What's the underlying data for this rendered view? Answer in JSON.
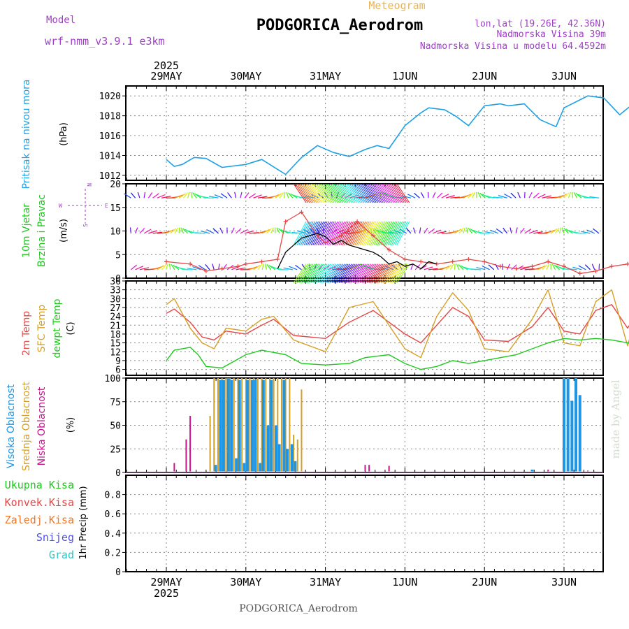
{
  "header": {
    "model_label": "Model",
    "model_name": "wrf-nmm_v3.9.1 e3km",
    "meteogram_label": "Meteogram",
    "station_title": "PODGORICA_Aerodrom",
    "coords": "lon,lat (19.26E, 42.36N)",
    "elevation": "Nadmorska Visina 39m",
    "model_elevation": "Nadmorska Visina u modelu 64.4592m"
  },
  "footer": {
    "station": "PODGORICA_Aerodrom"
  },
  "watermark": "made by Angel",
  "colors": {
    "pressure": "#1ea0e6",
    "temp2m": "#e64646",
    "sfc": "#d6a028",
    "dewpt": "#1ec81e",
    "gust": "#000000",
    "low_cloud": "#c8148c",
    "mid_cloud": "#d6a028",
    "high_cloud": "#1e96e6",
    "purple_label": "#a040c8",
    "grid": "#888888"
  },
  "chart_data": [
    {
      "type": "line",
      "name": "pressure",
      "ylabel": "Pritisak na nivou mora",
      "unit": "(hPa)",
      "ylim": [
        1011.5,
        1021
      ],
      "yticks": [
        1012,
        1014,
        1016,
        1018,
        1020
      ],
      "x_days": [
        0,
        0.1,
        0.2,
        0.35,
        0.5,
        0.7,
        1.0,
        1.2,
        1.4,
        1.5,
        1.7,
        1.9,
        2.1,
        2.3,
        2.5,
        2.65,
        2.8,
        3.0,
        3.2,
        3.3,
        3.5,
        3.65,
        3.8,
        4.0,
        4.2,
        4.3,
        4.5,
        4.7,
        4.9,
        5.0,
        5.2,
        5.3,
        5.5,
        5.7,
        5.9,
        6.0
      ],
      "values": [
        1013.6,
        1012.9,
        1013.1,
        1013.8,
        1013.7,
        1012.8,
        1013.1,
        1013.6,
        1012.6,
        1012.1,
        1013.8,
        1015.0,
        1014.3,
        1013.9,
        1014.6,
        1015.0,
        1014.7,
        1017.0,
        1018.3,
        1018.8,
        1018.6,
        1017.9,
        1017.0,
        1019.0,
        1019.2,
        1019.0,
        1019.2,
        1017.6,
        1016.9,
        1018.8,
        1019.6,
        1020.0,
        1019.8,
        1018.1,
        1019.4,
        1019.8
      ]
    },
    {
      "type": "line",
      "name": "wind",
      "ylabel": "10m Vjetar",
      "ylabel2": "Brzina i Pravac",
      "unit": "(m/s)",
      "ylim": [
        0,
        20
      ],
      "yticks": [
        0,
        5,
        10,
        15,
        20
      ],
      "compass": {
        "w": "W",
        "e": "E",
        "n": "N",
        "s": "S"
      },
      "barb_rows": [
        17,
        9.5,
        1.8
      ],
      "series": [
        {
          "name": "10m wind speed",
          "x_days": [
            0,
            0.3,
            0.5,
            0.7,
            0.9,
            1.0,
            1.2,
            1.4,
            1.5,
            1.7,
            1.9,
            2.0,
            2.2,
            2.4,
            2.6,
            2.8,
            3.0,
            3.2,
            3.4,
            3.6,
            3.8,
            4.0,
            4.2,
            4.4,
            4.6,
            4.8,
            5.0,
            5.2,
            5.4,
            5.6,
            5.8,
            6.0
          ],
          "values": [
            3.5,
            3.0,
            1.5,
            2.0,
            2.5,
            3.0,
            3.5,
            4.0,
            12.0,
            14.0,
            9.0,
            7.5,
            9.0,
            12.0,
            9.0,
            6.0,
            4.0,
            3.5,
            3.0,
            3.5,
            4.0,
            3.5,
            2.5,
            2.0,
            2.5,
            3.5,
            2.5,
            1.0,
            1.5,
            2.5,
            3.0,
            3.0
          ]
        },
        {
          "name": "gust",
          "x_days": [
            1.4,
            1.5,
            1.6,
            1.7,
            1.8,
            1.9,
            2.0,
            2.1,
            2.2,
            2.3,
            2.4,
            2.5,
            2.6,
            2.7,
            2.8,
            2.9,
            3.0,
            3.1,
            3.2,
            3.3,
            3.4
          ],
          "values": [
            2.0,
            5.5,
            7.0,
            8.5,
            9.0,
            9.5,
            8.8,
            7.2,
            8.0,
            7.0,
            6.5,
            6.0,
            5.5,
            4.5,
            3.0,
            3.5,
            2.5,
            3.0,
            2.0,
            3.5,
            3.0
          ]
        }
      ]
    },
    {
      "type": "line",
      "name": "temperature",
      "ylabels": [
        "2m Temp",
        "SFC Temp",
        "dewpt Temp"
      ],
      "unit": "(C)",
      "ylim": [
        4,
        36
      ],
      "yticks": [
        6,
        9,
        12,
        15,
        18,
        21,
        24,
        27,
        30,
        33,
        36
      ],
      "series": [
        {
          "name": "2m Temp",
          "x_days": [
            0,
            0.1,
            0.3,
            0.45,
            0.6,
            0.75,
            1.0,
            1.2,
            1.35,
            1.6,
            2.0,
            2.3,
            2.6,
            2.8,
            3.0,
            3.2,
            3.4,
            3.6,
            3.8,
            4.0,
            4.3,
            4.6,
            4.8,
            5.0,
            5.2,
            5.4,
            5.6,
            5.8,
            6.0
          ],
          "values": [
            25,
            26.5,
            22,
            17,
            16,
            19,
            18,
            21,
            23,
            17.5,
            16.5,
            22,
            26,
            22,
            18,
            15,
            21,
            27,
            24,
            16,
            15.5,
            20.5,
            27,
            19,
            18,
            26,
            28,
            20,
            28.5
          ]
        },
        {
          "name": "SFC Temp",
          "x_days": [
            0,
            0.1,
            0.3,
            0.45,
            0.6,
            0.75,
            1.0,
            1.2,
            1.35,
            1.6,
            2.0,
            2.3,
            2.6,
            2.8,
            3.0,
            3.2,
            3.4,
            3.6,
            3.8,
            4.0,
            4.3,
            4.6,
            4.8,
            5.0,
            5.2,
            5.4,
            5.6,
            5.8,
            6.0
          ],
          "values": [
            28,
            30,
            20,
            15,
            13,
            20,
            19,
            23,
            24,
            16,
            12,
            27,
            29,
            21,
            13,
            10,
            24,
            32,
            26,
            13,
            12,
            23,
            33,
            15,
            14,
            29,
            33,
            14,
            34
          ]
        },
        {
          "name": "dewpt Temp",
          "x_days": [
            0,
            0.1,
            0.3,
            0.4,
            0.5,
            0.7,
            1.0,
            1.2,
            1.5,
            1.7,
            2.0,
            2.3,
            2.5,
            2.8,
            3.0,
            3.2,
            3.4,
            3.6,
            3.8,
            4.0,
            4.2,
            4.4,
            4.6,
            4.8,
            5.0,
            5.2,
            5.4,
            5.6,
            5.8,
            6.0
          ],
          "values": [
            9,
            12.5,
            13.5,
            11,
            7,
            6.5,
            11,
            12.5,
            11,
            8,
            7.5,
            8,
            10,
            11,
            8,
            6,
            7,
            9,
            8,
            9,
            10,
            11,
            13,
            15,
            16.5,
            16,
            16.5,
            16,
            15,
            14
          ]
        }
      ]
    },
    {
      "type": "bar",
      "name": "cloudiness",
      "ylabels": [
        "Visoka Oblacnost",
        "Srednja Oblacnost",
        "Niska Oblacnost"
      ],
      "unit": "(%)",
      "ylim": [
        0,
        100
      ],
      "yticks": [
        0,
        25,
        50,
        75,
        100
      ],
      "series": [
        {
          "name": "Niska Oblacnost",
          "x_days": [
            0.1,
            0.25,
            0.3,
            1.6,
            2.0,
            2.5,
            2.55,
            2.8,
            4.8,
            5.3
          ],
          "values": [
            10,
            35,
            60,
            10,
            0,
            8,
            8,
            7,
            3,
            2
          ]
        },
        {
          "name": "Srednja Oblacnost",
          "x_days": [
            0.55,
            0.6,
            0.65,
            0.7,
            0.75,
            0.8,
            0.85,
            0.9,
            0.95,
            1.0,
            1.05,
            1.1,
            1.15,
            1.2,
            1.25,
            1.3,
            1.35,
            1.4,
            1.45,
            1.5,
            1.55,
            1.6,
            1.65,
            1.7,
            5.0,
            5.05,
            5.1,
            5.15,
            5.2
          ],
          "values": [
            60,
            100,
            100,
            100,
            100,
            100,
            100,
            100,
            100,
            100,
            100,
            100,
            100,
            100,
            100,
            100,
            100,
            100,
            100,
            100,
            100,
            40,
            35,
            88,
            20,
            20,
            20,
            20,
            50
          ]
        },
        {
          "name": "Visoka Oblacnost",
          "x_days": [
            0.62,
            0.68,
            0.72,
            0.78,
            0.82,
            0.88,
            0.92,
            0.98,
            1.02,
            1.08,
            1.12,
            1.18,
            1.22,
            1.28,
            1.32,
            1.38,
            1.42,
            1.48,
            1.52,
            1.58,
            1.62,
            4.6,
            5.0,
            5.05,
            5.1,
            5.15,
            5.2
          ],
          "values": [
            8,
            98,
            98,
            100,
            98,
            15,
            98,
            10,
            98,
            98,
            98,
            10,
            98,
            50,
            98,
            50,
            30,
            98,
            25,
            30,
            12,
            3,
            100,
            100,
            76,
            100,
            82
          ]
        }
      ]
    },
    {
      "type": "bar",
      "name": "precipitation",
      "ylabel": "1hr Precip (mm)",
      "ylim": [
        0,
        1
      ],
      "yticks": [
        0,
        0.2,
        0.4,
        0.6,
        0.8
      ],
      "legend": [
        "Ukupna Kisa",
        "Konvek.Kisa",
        "Zaledj.Kisa",
        "Snijeg",
        "Grad"
      ],
      "values": []
    }
  ],
  "time_axis": {
    "year_label": "2025",
    "day_labels": [
      "29MAY",
      "30MAY",
      "31MAY",
      "1JUN",
      "2JUN",
      "3JUN"
    ]
  }
}
